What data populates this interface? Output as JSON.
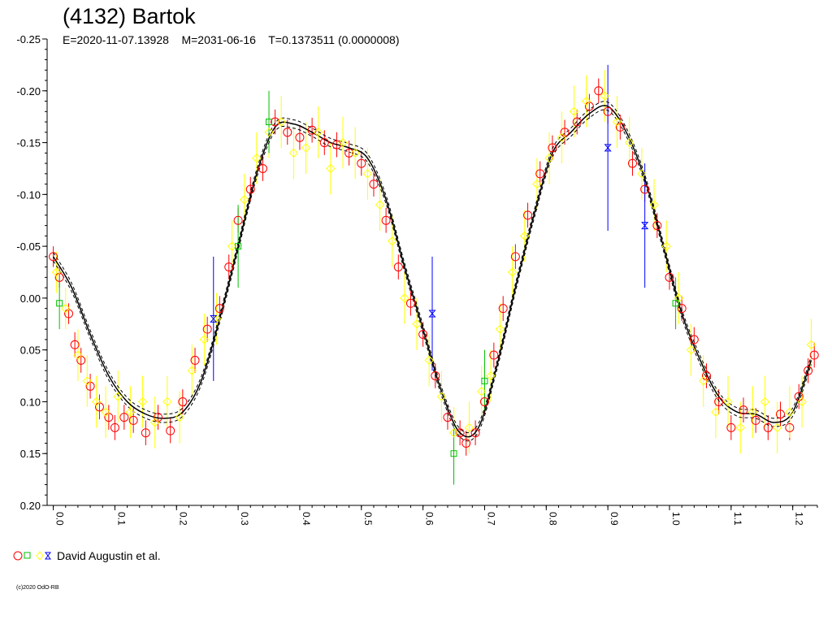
{
  "header": {
    "title": "(4132) Bartok",
    "subtitle": "E=2020-11-07.13928    M=2031-06-16    T=0.1373511 (0.0000008)"
  },
  "legend": {
    "label": "David Augustin et al."
  },
  "footer": {
    "copyright": "(c)2020 OdO-RB"
  },
  "colors": {
    "red": "#ff0000",
    "green": "#00c000",
    "yellow": "#ffff00",
    "blue": "#0000ff",
    "fit": "#000000"
  },
  "chart_data": {
    "type": "scatter",
    "title": "(4132) Bartok",
    "xlabel": "",
    "ylabel": "",
    "xlim": [
      -0.01,
      1.24
    ],
    "ylim": [
      -0.25,
      0.2
    ],
    "y_inverted": true,
    "x_tick_labels": [
      "0.0",
      "0.1",
      "0.2",
      "0.3",
      "0.4",
      "0.5",
      "0.6",
      "0.7",
      "0.8",
      "0.9",
      "1.0",
      "1.1",
      "1.2"
    ],
    "y_tick_labels": [
      "-0.25",
      "-0.20",
      "-0.15",
      "-0.10",
      "-0.05",
      "0.00",
      "0.05",
      "0.10",
      "0.15",
      "0.20"
    ],
    "grid": false,
    "legend_position": "bottom-left",
    "fit_curve": {
      "x": [
        0.0,
        0.03,
        0.06,
        0.09,
        0.12,
        0.15,
        0.18,
        0.21,
        0.24,
        0.27,
        0.3,
        0.33,
        0.36,
        0.39,
        0.42,
        0.45,
        0.48,
        0.51,
        0.54,
        0.57,
        0.6,
        0.63,
        0.66,
        0.69,
        0.72,
        0.75,
        0.78,
        0.81,
        0.84,
        0.87,
        0.9,
        0.93,
        0.96,
        0.99,
        1.02,
        1.05,
        1.08,
        1.11,
        1.14,
        1.17,
        1.2,
        1.23
      ],
      "y": [
        -0.04,
        -0.01,
        0.035,
        0.075,
        0.1,
        0.112,
        0.116,
        0.11,
        0.08,
        0.02,
        -0.05,
        -0.12,
        -0.165,
        -0.168,
        -0.16,
        -0.15,
        -0.145,
        -0.135,
        -0.095,
        -0.03,
        0.03,
        0.09,
        0.13,
        0.125,
        0.065,
        -0.01,
        -0.08,
        -0.14,
        -0.16,
        -0.178,
        -0.185,
        -0.16,
        -0.115,
        -0.05,
        0.015,
        0.06,
        0.095,
        0.11,
        0.112,
        0.12,
        0.11,
        0.06
      ],
      "band": 0.004
    },
    "series": [
      {
        "marker": "circle",
        "color": "red",
        "points": [
          [
            0.0,
            -0.04,
            0.01
          ],
          [
            0.01,
            -0.02,
            0.01
          ],
          [
            0.025,
            0.015,
            0.01
          ],
          [
            0.035,
            0.045,
            0.012
          ],
          [
            0.045,
            0.06,
            0.012
          ],
          [
            0.06,
            0.085,
            0.012
          ],
          [
            0.075,
            0.105,
            0.012
          ],
          [
            0.09,
            0.115,
            0.012
          ],
          [
            0.1,
            0.125,
            0.012
          ],
          [
            0.115,
            0.115,
            0.012
          ],
          [
            0.13,
            0.118,
            0.012
          ],
          [
            0.15,
            0.13,
            0.012
          ],
          [
            0.17,
            0.115,
            0.012
          ],
          [
            0.19,
            0.128,
            0.012
          ],
          [
            0.21,
            0.1,
            0.012
          ],
          [
            0.23,
            0.06,
            0.012
          ],
          [
            0.25,
            0.03,
            0.012
          ],
          [
            0.27,
            0.01,
            0.012
          ],
          [
            0.285,
            -0.03,
            0.012
          ],
          [
            0.3,
            -0.075,
            0.012
          ],
          [
            0.32,
            -0.105,
            0.012
          ],
          [
            0.34,
            -0.125,
            0.012
          ],
          [
            0.36,
            -0.17,
            0.012
          ],
          [
            0.38,
            -0.16,
            0.012
          ],
          [
            0.4,
            -0.155,
            0.012
          ],
          [
            0.42,
            -0.162,
            0.012
          ],
          [
            0.44,
            -0.15,
            0.012
          ],
          [
            0.46,
            -0.148,
            0.012
          ],
          [
            0.48,
            -0.14,
            0.012
          ],
          [
            0.5,
            -0.13,
            0.012
          ],
          [
            0.52,
            -0.11,
            0.012
          ],
          [
            0.54,
            -0.075,
            0.012
          ],
          [
            0.56,
            -0.03,
            0.012
          ],
          [
            0.58,
            0.005,
            0.012
          ],
          [
            0.6,
            0.035,
            0.012
          ],
          [
            0.62,
            0.075,
            0.012
          ],
          [
            0.64,
            0.115,
            0.012
          ],
          [
            0.66,
            0.13,
            0.012
          ],
          [
            0.67,
            0.14,
            0.012
          ],
          [
            0.685,
            0.13,
            0.012
          ],
          [
            0.7,
            0.1,
            0.012
          ],
          [
            0.715,
            0.055,
            0.012
          ],
          [
            0.73,
            0.01,
            0.012
          ],
          [
            0.75,
            -0.04,
            0.012
          ],
          [
            0.77,
            -0.08,
            0.012
          ],
          [
            0.79,
            -0.12,
            0.012
          ],
          [
            0.81,
            -0.145,
            0.012
          ],
          [
            0.83,
            -0.16,
            0.012
          ],
          [
            0.85,
            -0.17,
            0.012
          ],
          [
            0.87,
            -0.185,
            0.012
          ],
          [
            0.885,
            -0.2,
            0.012
          ],
          [
            0.9,
            -0.18,
            0.012
          ],
          [
            0.92,
            -0.165,
            0.012
          ],
          [
            0.94,
            -0.13,
            0.012
          ],
          [
            0.96,
            -0.105,
            0.012
          ],
          [
            0.98,
            -0.07,
            0.012
          ],
          [
            1.0,
            -0.02,
            0.012
          ],
          [
            1.02,
            0.01,
            0.012
          ],
          [
            1.04,
            0.04,
            0.012
          ],
          [
            1.06,
            0.075,
            0.012
          ],
          [
            1.08,
            0.1,
            0.012
          ],
          [
            1.1,
            0.125,
            0.012
          ],
          [
            1.12,
            0.108,
            0.012
          ],
          [
            1.14,
            0.118,
            0.012
          ],
          [
            1.16,
            0.125,
            0.012
          ],
          [
            1.18,
            0.112,
            0.012
          ],
          [
            1.195,
            0.125,
            0.012
          ],
          [
            1.21,
            0.095,
            0.012
          ],
          [
            1.225,
            0.07,
            0.012
          ],
          [
            1.235,
            0.055,
            0.012
          ]
        ]
      },
      {
        "marker": "diamond",
        "color": "yellow",
        "points": [
          [
            0.005,
            -0.025,
            0.02
          ],
          [
            0.02,
            0.01,
            0.02
          ],
          [
            0.04,
            0.055,
            0.025
          ],
          [
            0.055,
            0.08,
            0.025
          ],
          [
            0.07,
            0.1,
            0.025
          ],
          [
            0.085,
            0.11,
            0.025
          ],
          [
            0.105,
            0.095,
            0.025
          ],
          [
            0.125,
            0.11,
            0.025
          ],
          [
            0.145,
            0.1,
            0.025
          ],
          [
            0.165,
            0.12,
            0.025
          ],
          [
            0.185,
            0.1,
            0.025
          ],
          [
            0.205,
            0.115,
            0.025
          ],
          [
            0.225,
            0.07,
            0.025
          ],
          [
            0.245,
            0.04,
            0.025
          ],
          [
            0.265,
            0.02,
            0.025
          ],
          [
            0.29,
            -0.05,
            0.025
          ],
          [
            0.31,
            -0.095,
            0.025
          ],
          [
            0.33,
            -0.135,
            0.025
          ],
          [
            0.35,
            -0.16,
            0.025
          ],
          [
            0.37,
            -0.17,
            0.025
          ],
          [
            0.39,
            -0.14,
            0.025
          ],
          [
            0.41,
            -0.145,
            0.025
          ],
          [
            0.43,
            -0.16,
            0.025
          ],
          [
            0.45,
            -0.125,
            0.025
          ],
          [
            0.47,
            -0.15,
            0.025
          ],
          [
            0.49,
            -0.14,
            0.025
          ],
          [
            0.51,
            -0.12,
            0.025
          ],
          [
            0.53,
            -0.09,
            0.025
          ],
          [
            0.55,
            -0.055,
            0.025
          ],
          [
            0.57,
            0.0,
            0.025
          ],
          [
            0.59,
            0.025,
            0.025
          ],
          [
            0.61,
            0.06,
            0.025
          ],
          [
            0.63,
            0.095,
            0.025
          ],
          [
            0.65,
            0.13,
            0.025
          ],
          [
            0.675,
            0.125,
            0.025
          ],
          [
            0.695,
            0.09,
            0.025
          ],
          [
            0.71,
            0.075,
            0.025
          ],
          [
            0.725,
            0.03,
            0.025
          ],
          [
            0.745,
            -0.025,
            0.025
          ],
          [
            0.765,
            -0.06,
            0.025
          ],
          [
            0.785,
            -0.11,
            0.025
          ],
          [
            0.805,
            -0.135,
            0.025
          ],
          [
            0.825,
            -0.155,
            0.025
          ],
          [
            0.845,
            -0.18,
            0.025
          ],
          [
            0.865,
            -0.19,
            0.025
          ],
          [
            0.895,
            -0.195,
            0.025
          ],
          [
            0.915,
            -0.17,
            0.025
          ],
          [
            0.935,
            -0.15,
            0.025
          ],
          [
            0.955,
            -0.12,
            0.025
          ],
          [
            0.975,
            -0.09,
            0.025
          ],
          [
            0.995,
            -0.05,
            0.025
          ],
          [
            1.015,
            0.0,
            0.025
          ],
          [
            1.035,
            0.05,
            0.025
          ],
          [
            1.055,
            0.08,
            0.025
          ],
          [
            1.075,
            0.11,
            0.025
          ],
          [
            1.095,
            0.1,
            0.025
          ],
          [
            1.115,
            0.125,
            0.025
          ],
          [
            1.135,
            0.11,
            0.025
          ],
          [
            1.155,
            0.1,
            0.025
          ],
          [
            1.175,
            0.125,
            0.025
          ],
          [
            1.195,
            0.11,
            0.025
          ],
          [
            1.215,
            0.1,
            0.025
          ],
          [
            1.23,
            0.045,
            0.025
          ]
        ]
      },
      {
        "marker": "square",
        "color": "green",
        "points": [
          [
            0.01,
            0.005,
            0.025
          ],
          [
            0.3,
            -0.05,
            0.04
          ],
          [
            0.35,
            -0.17,
            0.03
          ],
          [
            0.65,
            0.15,
            0.03
          ],
          [
            0.7,
            0.08,
            0.03
          ],
          [
            1.01,
            0.005,
            0.025
          ]
        ]
      },
      {
        "marker": "hourglass",
        "color": "blue",
        "points": [
          [
            0.26,
            0.02,
            0.06
          ],
          [
            0.615,
            0.015,
            0.055
          ],
          [
            0.9,
            -0.145,
            0.08
          ],
          [
            0.96,
            -0.07,
            0.06
          ]
        ]
      }
    ]
  }
}
